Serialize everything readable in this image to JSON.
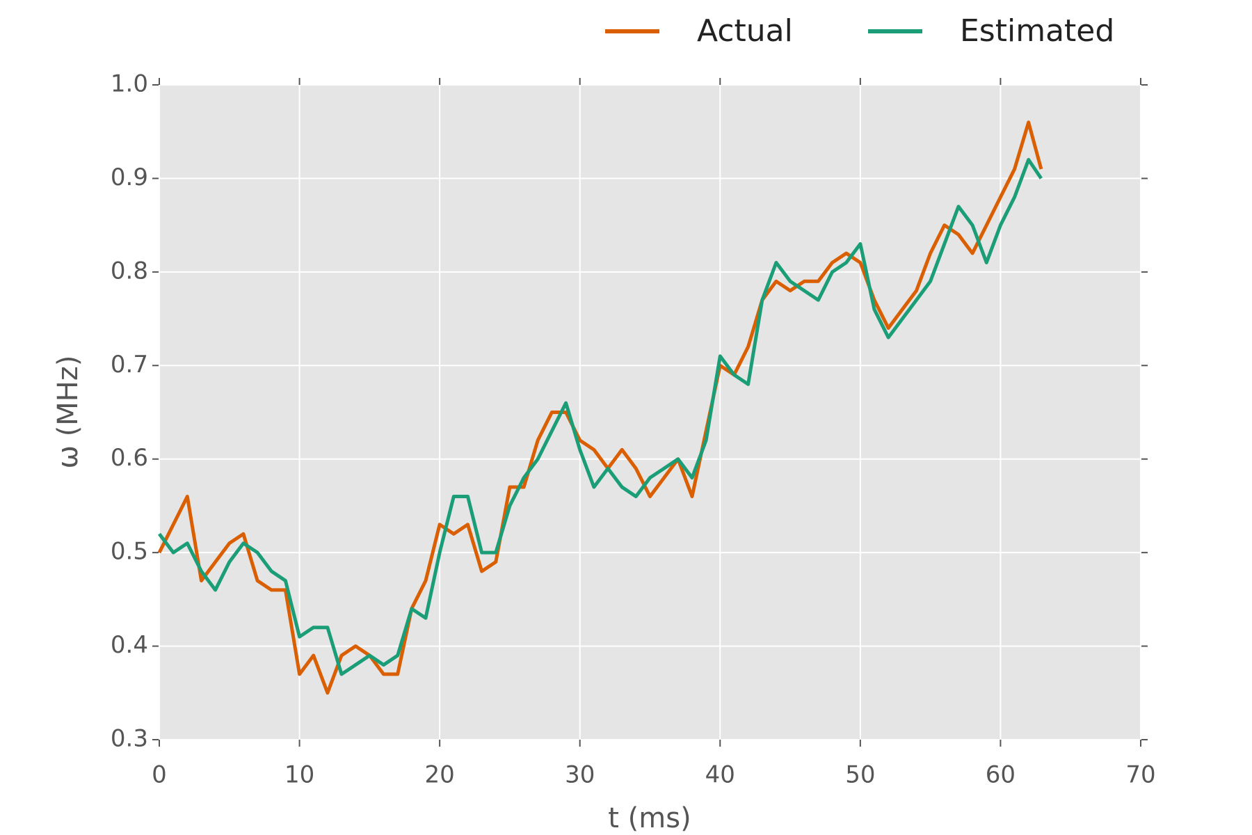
{
  "chart_data": {
    "type": "line",
    "xlabel": "t (ms)",
    "ylabel": "ω (MHz)",
    "x": [
      0,
      1,
      2,
      3,
      4,
      5,
      6,
      7,
      8,
      9,
      10,
      11,
      12,
      13,
      14,
      15,
      16,
      17,
      18,
      19,
      20,
      21,
      22,
      23,
      24,
      25,
      26,
      27,
      28,
      29,
      30,
      31,
      32,
      33,
      34,
      35,
      36,
      37,
      38,
      39,
      40,
      41,
      42,
      43,
      44,
      45,
      46,
      47,
      48,
      49,
      50,
      51,
      52,
      53,
      54,
      55,
      56,
      57,
      58,
      59,
      60,
      61,
      62,
      62.9
    ],
    "series": [
      {
        "name": "Actual",
        "color": "#d95f02",
        "values": [
          0.5,
          0.53,
          0.56,
          0.47,
          0.49,
          0.51,
          0.52,
          0.47,
          0.46,
          0.46,
          0.37,
          0.39,
          0.35,
          0.39,
          0.4,
          0.39,
          0.37,
          0.37,
          0.44,
          0.47,
          0.53,
          0.52,
          0.53,
          0.48,
          0.49,
          0.57,
          0.57,
          0.62,
          0.65,
          0.65,
          0.62,
          0.61,
          0.59,
          0.61,
          0.59,
          0.56,
          0.58,
          0.6,
          0.56,
          0.63,
          0.7,
          0.69,
          0.72,
          0.77,
          0.79,
          0.78,
          0.79,
          0.79,
          0.81,
          0.82,
          0.81,
          0.77,
          0.74,
          0.76,
          0.78,
          0.82,
          0.85,
          0.84,
          0.82,
          0.85,
          0.88,
          0.91,
          0.96,
          0.91
        ]
      },
      {
        "name": "Estimated",
        "color": "#1b9e77",
        "values": [
          0.52,
          0.5,
          0.51,
          0.48,
          0.46,
          0.49,
          0.51,
          0.5,
          0.48,
          0.47,
          0.41,
          0.42,
          0.42,
          0.37,
          0.38,
          0.39,
          0.38,
          0.39,
          0.44,
          0.43,
          0.5,
          0.56,
          0.56,
          0.5,
          0.5,
          0.55,
          0.58,
          0.6,
          0.63,
          0.66,
          0.61,
          0.57,
          0.59,
          0.57,
          0.56,
          0.58,
          0.59,
          0.6,
          0.58,
          0.62,
          0.71,
          0.69,
          0.68,
          0.77,
          0.81,
          0.79,
          0.78,
          0.77,
          0.8,
          0.81,
          0.83,
          0.76,
          0.73,
          0.75,
          0.77,
          0.79,
          0.83,
          0.87,
          0.85,
          0.81,
          0.85,
          0.88,
          0.92,
          0.9
        ]
      }
    ],
    "xlim": [
      0,
      70
    ],
    "xticks": [
      0,
      10,
      20,
      30,
      40,
      50,
      60,
      70
    ],
    "ylim": [
      0.3,
      1
    ],
    "yticks": [
      0.3,
      0.4,
      0.5,
      0.6,
      0.7,
      0.8,
      0.9,
      {
        "value": 1,
        "label": "1.0"
      }
    ],
    "grid": true,
    "legend": "top"
  }
}
